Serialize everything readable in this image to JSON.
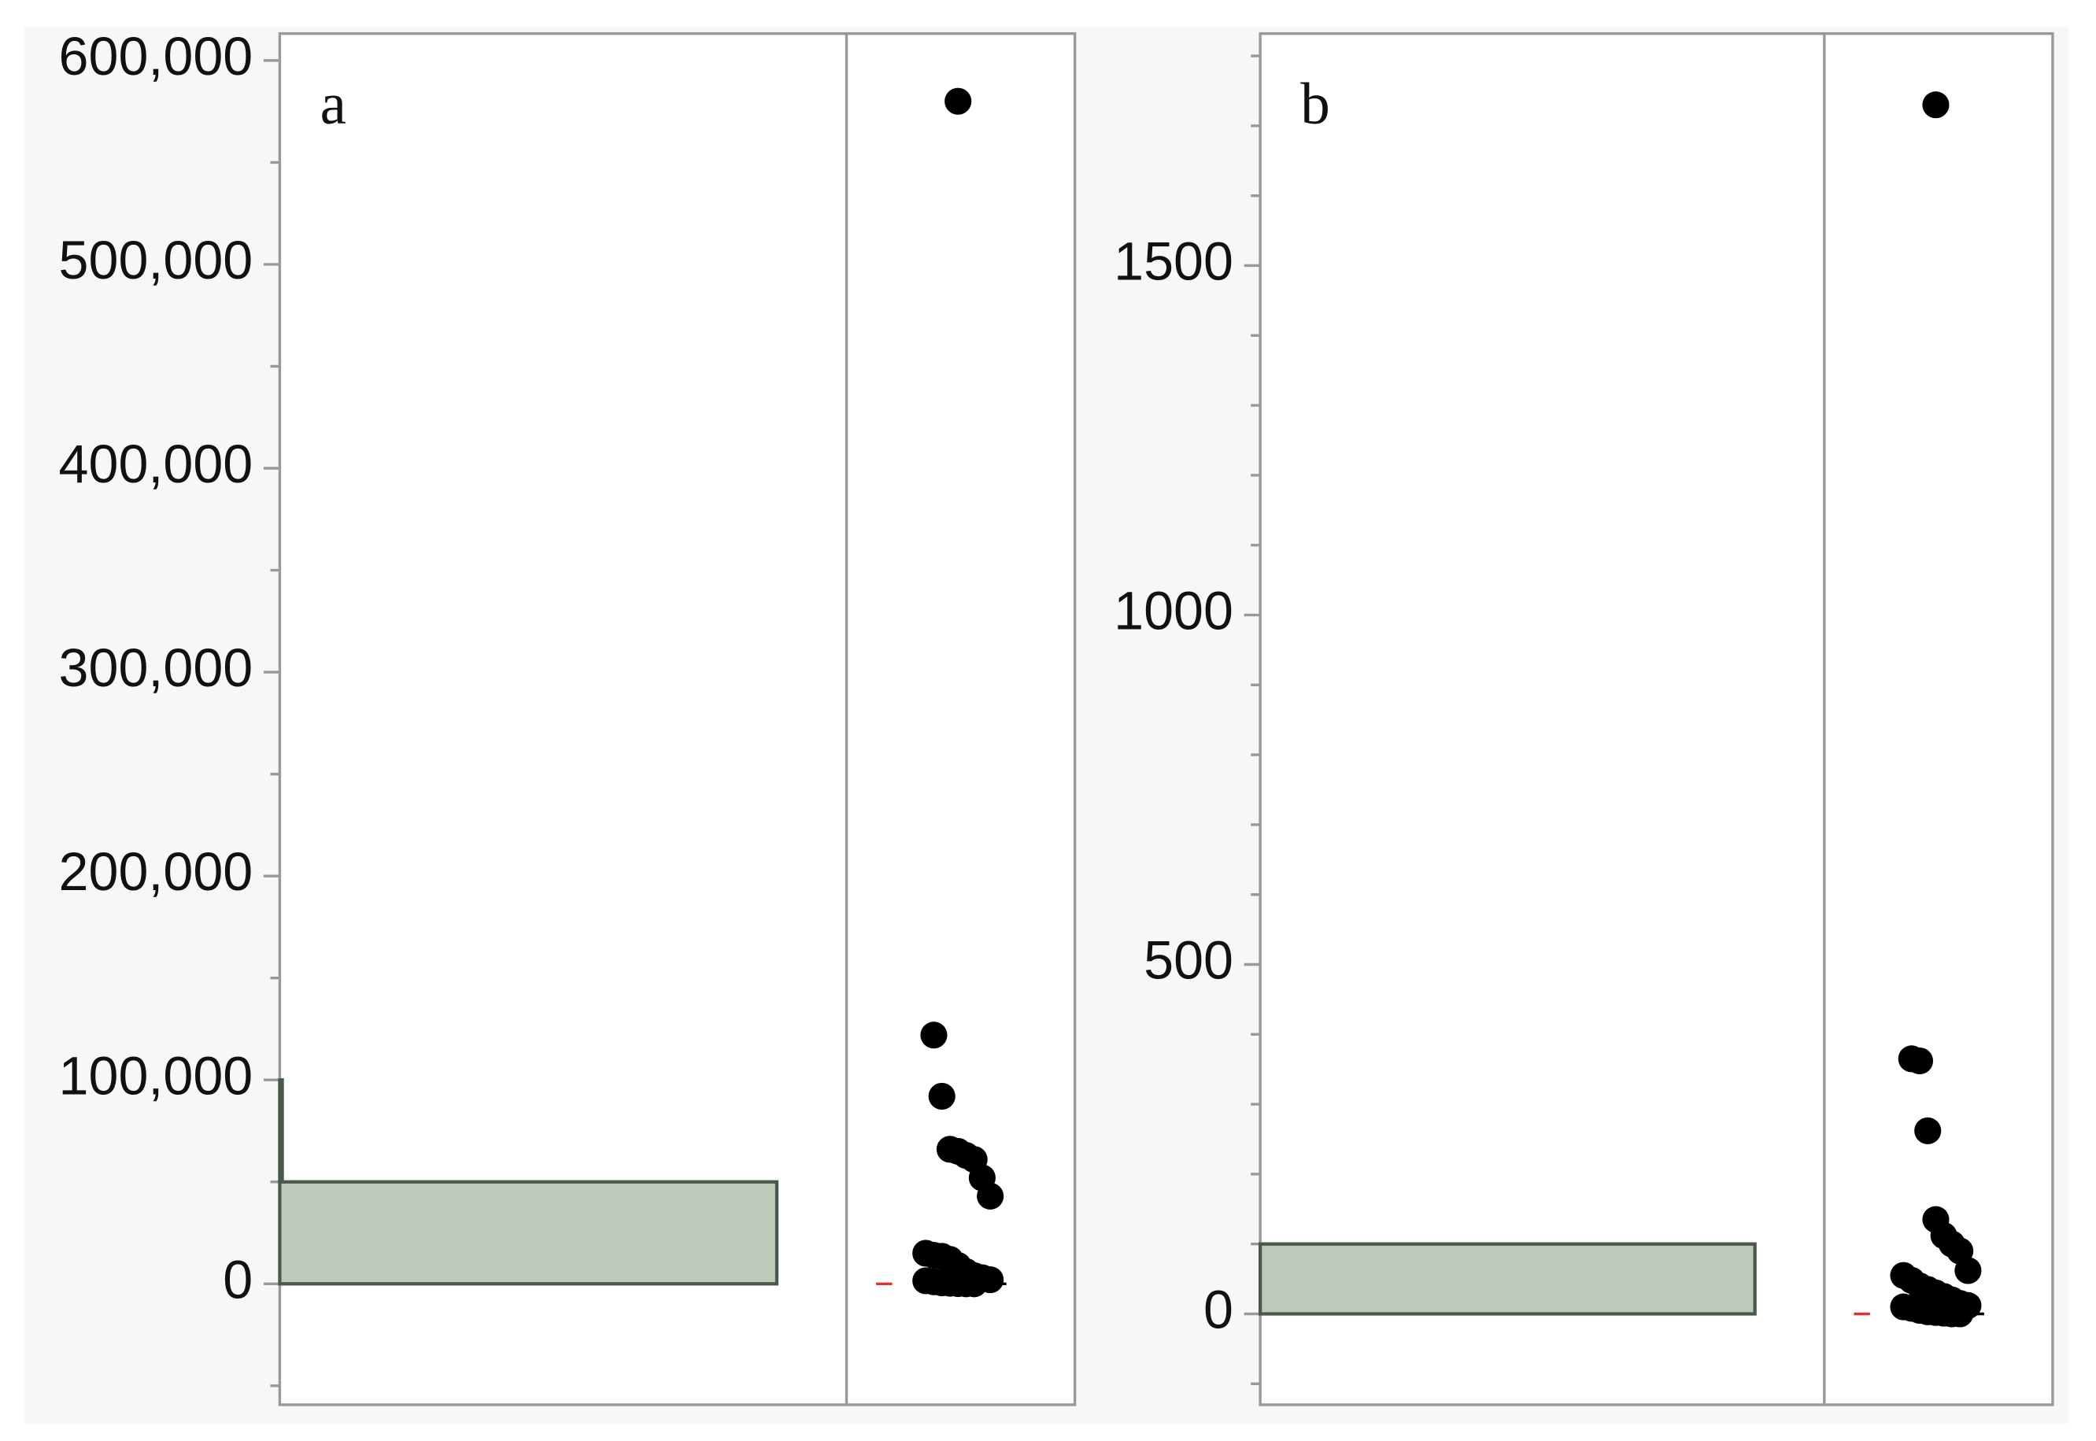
{
  "chart_data": [
    {
      "type": "histogram",
      "label": "a",
      "bins": [
        0,
        50000,
        100000
      ],
      "counts": [
        40,
        0.2
      ],
      "points": [
        580000,
        122000,
        92000,
        66000,
        65000,
        63000,
        61000,
        52000,
        43000,
        15000,
        14000,
        13500,
        12000,
        9000,
        6000,
        4000,
        3000,
        2000,
        1500,
        1000,
        500,
        300,
        100,
        0,
        0
      ],
      "ylim": [
        -59300,
        613200
      ],
      "yticks": [
        0,
        {
          "value": 100000,
          "label": "100,000"
        },
        {
          "value": 200000,
          "label": "200,000"
        },
        {
          "value": 300000,
          "label": "300,000"
        },
        {
          "value": 400000,
          "label": "400,000"
        },
        {
          "value": 500000,
          "label": "500,000"
        },
        {
          "value": 600000,
          "label": "600,000"
        }
      ],
      "minor_yticks": [
        -50000,
        50000,
        150000,
        250000,
        350000,
        450000,
        550000
      ],
      "bar_color": "#bccbb9",
      "point_color": "#000000"
    },
    {
      "type": "histogram",
      "label": "b",
      "bins": [
        0,
        100
      ],
      "counts": [
        40
      ],
      "points": [
        1730,
        365,
        362,
        262,
        135,
        112,
        100,
        90,
        62,
        55,
        48,
        40,
        35,
        30,
        25,
        20,
        15,
        12,
        10,
        8,
        5,
        3,
        2,
        1,
        0,
        0
      ],
      "ylim": [
        -130,
        1832
      ],
      "yticks": [
        0,
        500,
        1000,
        1500
      ],
      "minor_yticks": [
        -100,
        100,
        200,
        300,
        400,
        600,
        700,
        800,
        900,
        1100,
        1200,
        1300,
        1400,
        1600,
        1700,
        1800
      ],
      "bar_color": "#bccbb9",
      "point_color": "#000000"
    }
  ]
}
